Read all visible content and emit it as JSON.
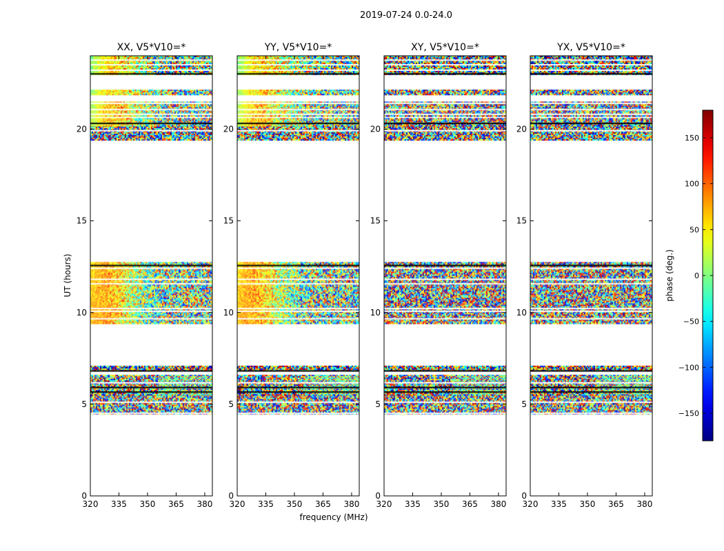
{
  "chart_data": {
    "type": "heatmap",
    "title": "2019-07-24 0.0-24.0",
    "xlabel": "frequency (MHz)",
    "ylabel": "UT (hours)",
    "xlim": [
      320,
      384
    ],
    "ylim": [
      0,
      24
    ],
    "x_ticks": [
      320,
      335,
      350,
      365,
      380
    ],
    "y_ticks": [
      0,
      5,
      10,
      15,
      20
    ],
    "colormap": "jet",
    "colorbar": {
      "label": "phase (deg.)",
      "range": [
        -180,
        180
      ],
      "ticks": [
        150,
        100,
        50,
        0,
        -50,
        -100,
        -150
      ],
      "tick_labels": [
        "150",
        "100",
        "50",
        "0",
        "−50",
        "−100",
        "−150"
      ]
    },
    "panels": [
      {
        "title": "XX, V5*V10=*",
        "mode": "parallel"
      },
      {
        "title": "YY, V5*V10=*",
        "mode": "parallel"
      },
      {
        "title": "XY, V5*V10=*",
        "mode": "cross"
      },
      {
        "title": "YX, V5*V10=*",
        "mode": "cross"
      }
    ],
    "data_segments": [
      {
        "from": 4.45,
        "to": 5.5,
        "kind": "noise"
      },
      {
        "from": 5.5,
        "to": 6.6,
        "kind": "striped"
      },
      {
        "from": 6.8,
        "to": 7.1,
        "kind": "noise"
      },
      {
        "from": 9.4,
        "to": 12.75,
        "kind": "gradient"
      },
      {
        "from": 19.4,
        "to": 20.2,
        "kind": "noise"
      },
      {
        "from": 20.2,
        "to": 20.6,
        "kind": "gradient"
      },
      {
        "from": 20.7,
        "to": 21.5,
        "kind": "gradient"
      },
      {
        "from": 21.9,
        "to": 22.15,
        "kind": "gradient"
      },
      {
        "from": 22.95,
        "to": 24.0,
        "kind": "gradient"
      }
    ],
    "gap_lines_hours": [
      4.55,
      5.15,
      5.7,
      5.95,
      6.2,
      6.85,
      9.7,
      10.1,
      10.25,
      11.6,
      11.85,
      12.45,
      12.6,
      19.95,
      20.35,
      20.85,
      21.1,
      21.45,
      23.05,
      23.25,
      23.55,
      23.8
    ]
  }
}
